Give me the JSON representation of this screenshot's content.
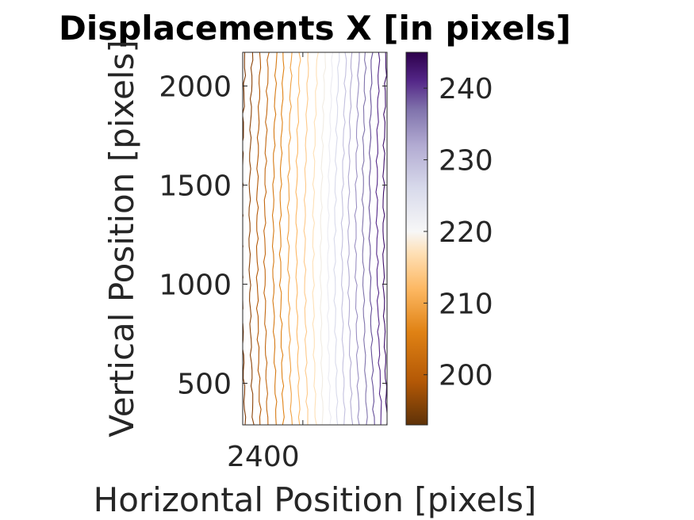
{
  "chart_data": {
    "type": "contour",
    "title": "Displacements X [in pixels]",
    "xlabel": "Horizontal Position [pixels]",
    "ylabel": "Vertical Position [pixels]",
    "xlim": [
      2325,
      2505
    ],
    "ylim": [
      290,
      2170
    ],
    "x_ticks": [
      {
        "value": 2400,
        "label": "2400"
      }
    ],
    "y_ticks": [
      {
        "value": 500,
        "label": "500"
      },
      {
        "value": 1000,
        "label": "1000"
      },
      {
        "value": 1500,
        "label": "1500"
      },
      {
        "value": 2000,
        "label": "2000"
      }
    ],
    "colorbar": {
      "colormap": "PuOr",
      "clim": [
        193,
        245
      ],
      "ticks": [
        {
          "value": 200,
          "label": "200"
        },
        {
          "value": 210,
          "label": "210"
        },
        {
          "value": 220,
          "label": "220"
        },
        {
          "value": 230,
          "label": "230"
        },
        {
          "value": 240,
          "label": "240"
        }
      ],
      "color_stops": [
        {
          "value": 193,
          "color": "#5e3208"
        },
        {
          "value": 199,
          "color": "#b35806"
        },
        {
          "value": 206,
          "color": "#e08214"
        },
        {
          "value": 212,
          "color": "#fdb863"
        },
        {
          "value": 217,
          "color": "#fee0b6"
        },
        {
          "value": 220,
          "color": "#f7f7f7"
        },
        {
          "value": 226,
          "color": "#d8daeb"
        },
        {
          "value": 232,
          "color": "#b2abd2"
        },
        {
          "value": 237,
          "color": "#8073ac"
        },
        {
          "value": 241,
          "color": "#542788"
        },
        {
          "value": 245,
          "color": "#2d004b"
        }
      ]
    },
    "contour_levels": [
      {
        "level": 196,
        "x_at_bottom": 2328,
        "x_at_top": 2328,
        "color": "#7f3b08"
      },
      {
        "level": 198,
        "x_at_bottom": 2338,
        "x_at_top": 2337,
        "color": "#8c4307"
      },
      {
        "level": 200,
        "x_at_bottom": 2347,
        "x_at_top": 2347,
        "color": "#b35806"
      },
      {
        "level": 202,
        "x_at_bottom": 2356,
        "x_at_top": 2357,
        "color": "#c26710"
      },
      {
        "level": 204,
        "x_at_bottom": 2367,
        "x_at_top": 2367,
        "color": "#d67a14"
      },
      {
        "level": 206,
        "x_at_bottom": 2376,
        "x_at_top": 2376,
        "color": "#e08214"
      },
      {
        "level": 208,
        "x_at_bottom": 2386,
        "x_at_top": 2386,
        "color": "#f0a040"
      },
      {
        "level": 210,
        "x_at_bottom": 2396,
        "x_at_top": 2396,
        "color": "#fdb863"
      },
      {
        "level": 212,
        "x_at_bottom": 2406,
        "x_at_top": 2407,
        "color": "#fec989"
      },
      {
        "level": 214,
        "x_at_bottom": 2416,
        "x_at_top": 2418,
        "color": "#fee0b6"
      },
      {
        "level": 216,
        "x_at_bottom": 2425,
        "x_at_top": 2428,
        "color": "#f1ece3"
      },
      {
        "level": 218,
        "x_at_bottom": 2434,
        "x_at_top": 2437,
        "color": "#ebebf2"
      },
      {
        "level": 220,
        "x_at_bottom": 2443,
        "x_at_top": 2445,
        "color": "#d8daeb"
      },
      {
        "level": 222,
        "x_at_bottom": 2452,
        "x_at_top": 2454,
        "color": "#c3c0df"
      },
      {
        "level": 224,
        "x_at_bottom": 2461,
        "x_at_top": 2461,
        "color": "#b2abd2"
      },
      {
        "level": 226,
        "x_at_bottom": 2470,
        "x_at_top": 2470,
        "color": "#9a8fc2"
      },
      {
        "level": 228,
        "x_at_bottom": 2480,
        "x_at_top": 2478,
        "color": "#8073ac"
      },
      {
        "level": 230,
        "x_at_bottom": 2489,
        "x_at_top": 2486,
        "color": "#66509a"
      },
      {
        "level": 232,
        "x_at_bottom": 2498,
        "x_at_top": 2495,
        "color": "#542788"
      },
      {
        "level": 234,
        "x_at_bottom": 2505,
        "x_at_top": 2504,
        "color": "#3f0f6b"
      }
    ]
  }
}
